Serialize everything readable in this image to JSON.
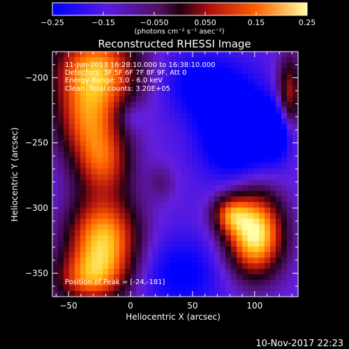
{
  "chart_data": {
    "type": "heatmap",
    "title": "Reconstructed RHESSI Image",
    "xlabel": "Heliocentric X (arcsec)",
    "ylabel": "Heliocentric Y (arcsec)",
    "xlim": [
      -63,
      135
    ],
    "ylim": [
      -368,
      -180
    ],
    "x_ticks": [
      {
        "value": -50,
        "label": "−50"
      },
      {
        "value": 0,
        "label": "0"
      },
      {
        "value": 50,
        "label": "50"
      },
      {
        "value": 100,
        "label": "100"
      }
    ],
    "y_ticks": [
      {
        "value": -200,
        "label": "−200"
      },
      {
        "value": -250,
        "label": "−250"
      },
      {
        "value": -300,
        "label": "−300"
      },
      {
        "value": -350,
        "label": "−350"
      }
    ],
    "colorbar": {
      "range": [
        -0.25,
        0.25
      ],
      "tick_labels": [
        "−0.25",
        "−0.15",
        "−0.050",
        "0.050",
        "0.15",
        "0.25"
      ],
      "tick_values": [
        -0.25,
        -0.15,
        -0.05,
        0.05,
        0.15,
        0.25
      ],
      "unit_label": "(photons cm⁻² s⁻¹ asec⁻²)",
      "colors": [
        "#0000ff",
        "#6a1fd0",
        "#5a0a5a",
        "#b01010",
        "#ff6000",
        "#ffff90"
      ]
    },
    "annotations": [
      "11-Jun-2013 16:28:10.000 to 16:38:10.000",
      "Detectors: 3F 5F 6F 7F 8F 9F, Att 0",
      "Energy Range: 3.0 - 6.0 keV",
      "Clean. Total counts: 3.20E+05"
    ],
    "peak_label": "Position of Peak = [-24,-181]",
    "peak": {
      "x": -24,
      "y": -181
    },
    "blobs": [
      {
        "x": -28,
        "y": -195,
        "sx": 24,
        "sy": 22,
        "amp": 0.34
      },
      {
        "x": -35,
        "y": -235,
        "sx": 18,
        "sy": 20,
        "amp": 0.22
      },
      {
        "x": -22,
        "y": -265,
        "sx": 16,
        "sy": 18,
        "amp": 0.22
      },
      {
        "x": -22,
        "y": -325,
        "sx": 20,
        "sy": 24,
        "amp": 0.36
      },
      {
        "x": -35,
        "y": -355,
        "sx": 20,
        "sy": 14,
        "amp": 0.2
      },
      {
        "x": 25,
        "y": -280,
        "sx": 8,
        "sy": 10,
        "amp": 0.06
      },
      {
        "x": 100,
        "y": -320,
        "sx": 16,
        "sy": 22,
        "amp": 0.42
      },
      {
        "x": 80,
        "y": -305,
        "sx": 10,
        "sy": 10,
        "amp": 0.2
      },
      {
        "x": 128,
        "y": -215,
        "sx": 7,
        "sy": 22,
        "amp": 0.22
      },
      {
        "x": 85,
        "y": -240,
        "sx": 20,
        "sy": 25,
        "amp": -0.2
      },
      {
        "x": 118,
        "y": -240,
        "sx": 10,
        "sy": 15,
        "amp": -0.18
      },
      {
        "x": 55,
        "y": -205,
        "sx": 22,
        "sy": 18,
        "amp": -0.1
      },
      {
        "x": 40,
        "y": -350,
        "sx": 25,
        "sy": 20,
        "amp": -0.1
      },
      {
        "x": 0,
        "y": -230,
        "sx": 8,
        "sy": 8,
        "amp": -0.06
      }
    ],
    "background": -0.16
  },
  "footer_date": "10-Nov-2017 22:23"
}
